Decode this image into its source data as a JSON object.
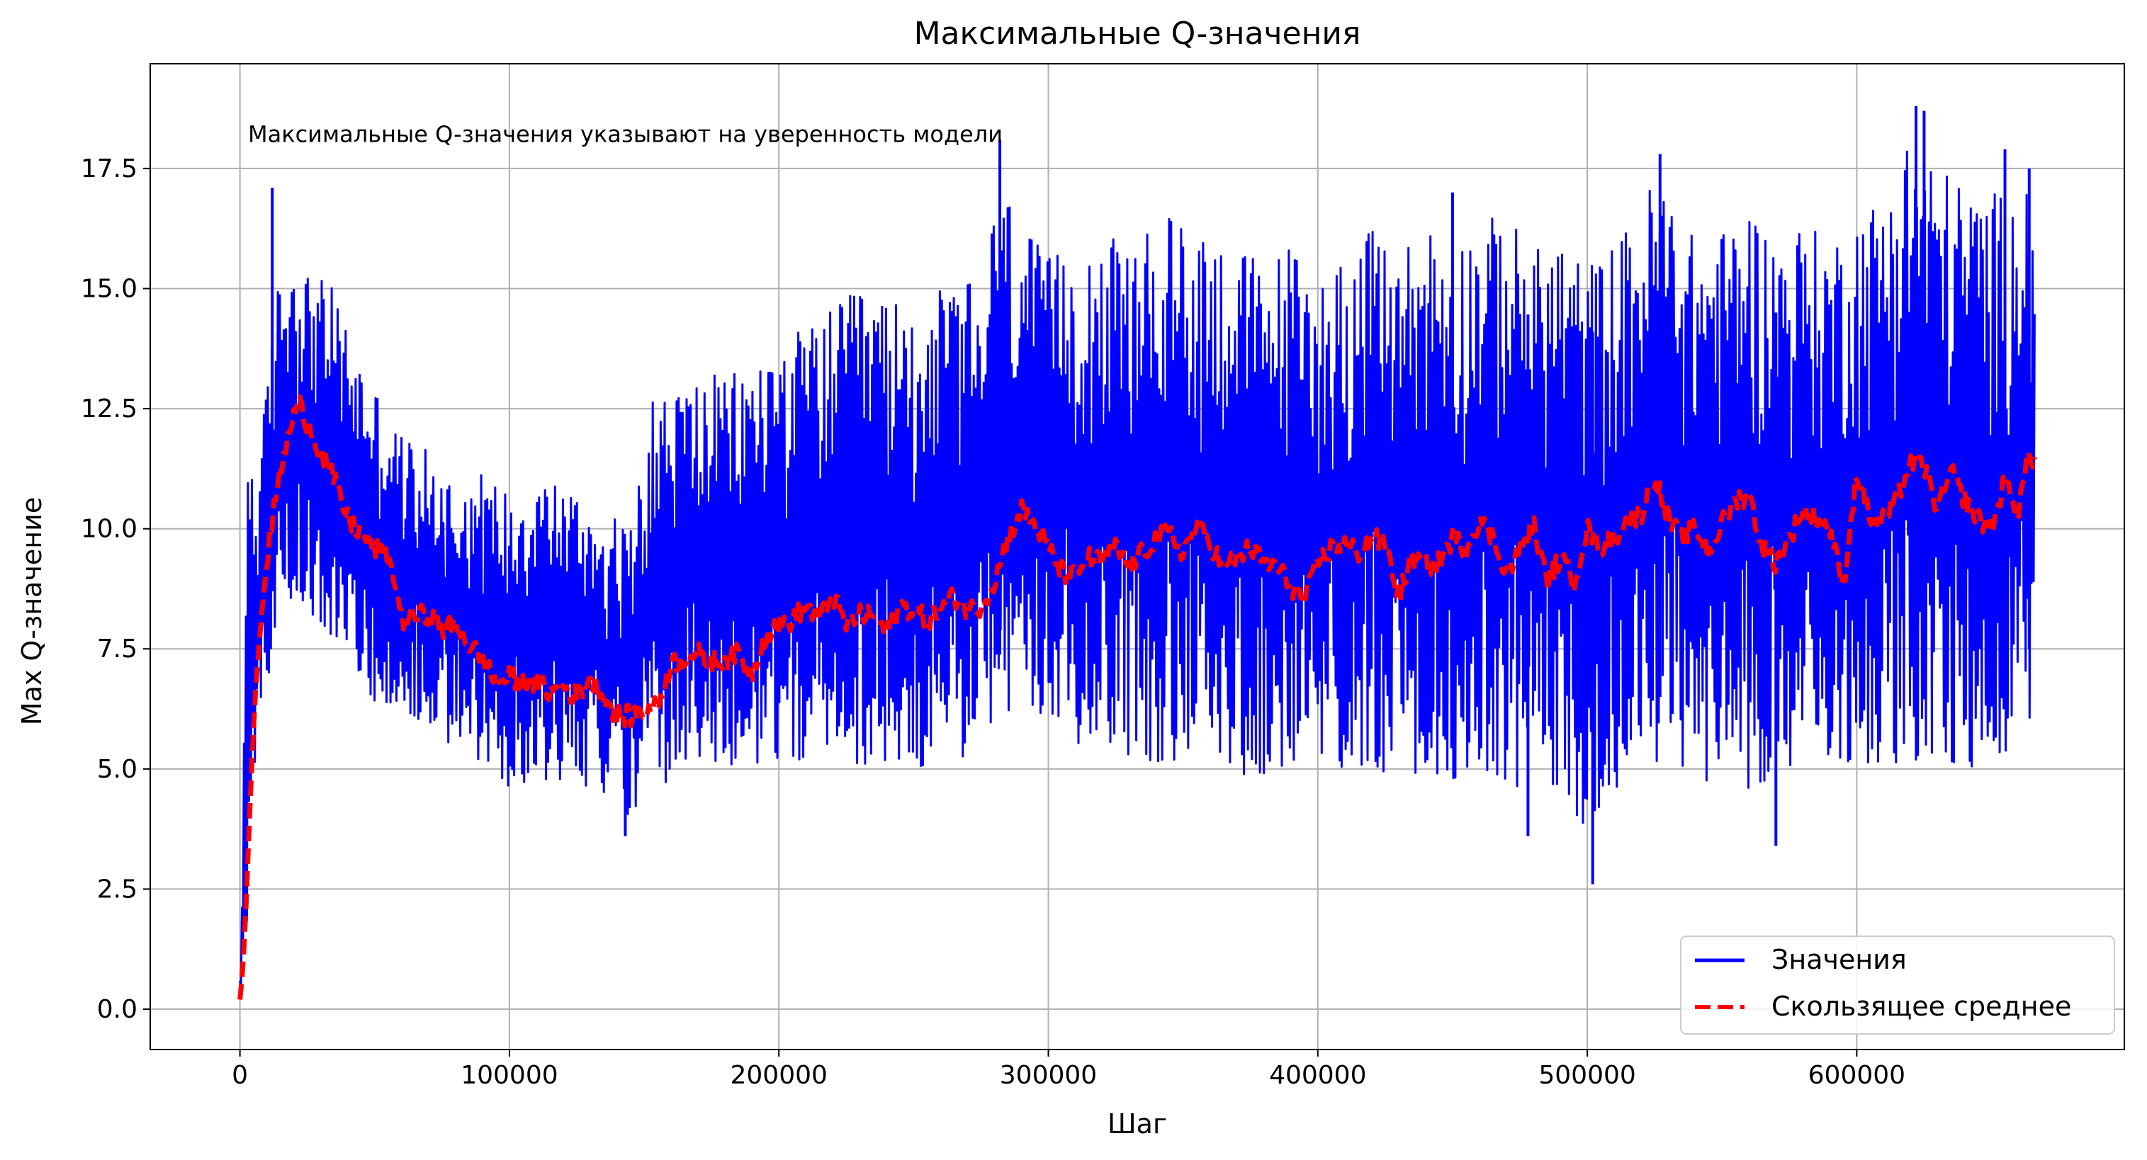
{
  "chart_data": {
    "type": "line",
    "title": "Максимальные Q-значения",
    "annotation": "Максимальные Q-значения указывают на уверенность модели",
    "xlabel": "Шаг",
    "ylabel": "Max Q-значение",
    "xlim": [
      -33300,
      699300
    ],
    "ylim": [
      -0.84,
      19.68
    ],
    "xticks": [
      0,
      100000,
      200000,
      300000,
      400000,
      500000,
      600000
    ],
    "xtick_labels": [
      "0",
      "100000",
      "200000",
      "300000",
      "400000",
      "500000",
      "600000"
    ],
    "yticks": [
      0.0,
      2.5,
      5.0,
      7.5,
      10.0,
      12.5,
      15.0,
      17.5
    ],
    "ytick_labels": [
      "0.0",
      "2.5",
      "5.0",
      "7.5",
      "10.0",
      "12.5",
      "15.0",
      "17.5"
    ],
    "grid": true,
    "legend_position": "bottom-right",
    "series": [
      {
        "name": "Значения",
        "color": "#0000ff",
        "style": "solid",
        "x": [
          0,
          1000,
          2000,
          3000,
          4000,
          5000,
          6000,
          7000,
          8000,
          10000,
          12000,
          15000,
          20000,
          25000,
          30000,
          35000,
          40000,
          45000,
          50000,
          55000,
          60000,
          70000,
          80000,
          90000,
          100000,
          110000,
          120000,
          130000,
          140000,
          145000,
          150000,
          160000,
          170000,
          180000,
          190000,
          200000,
          210000,
          220000,
          230000,
          240000,
          250000,
          260000,
          270000,
          275000,
          280000,
          285000,
          290000,
          300000,
          310000,
          320000,
          330000,
          340000,
          350000,
          360000,
          370000,
          380000,
          390000,
          400000,
          410000,
          420000,
          430000,
          440000,
          450000,
          460000,
          470000,
          480000,
          490000,
          500000,
          510000,
          520000,
          525000,
          530000,
          540000,
          550000,
          560000,
          570000,
          580000,
          590000,
          600000,
          610000,
          620000,
          630000,
          640000,
          650000,
          660000,
          666000
        ],
        "min": [
          0.1,
          0.5,
          1.2,
          2.2,
          3.2,
          4.0,
          4.8,
          5.4,
          6.0,
          6.8,
          7.2,
          8.0,
          8.5,
          8.3,
          8.0,
          7.6,
          7.2,
          6.8,
          6.4,
          6.2,
          6.0,
          5.8,
          5.4,
          4.9,
          4.6,
          4.8,
          4.7,
          4.6,
          4.2,
          4.0,
          4.3,
          4.6,
          4.9,
          5.0,
          5.0,
          5.1,
          5.1,
          5.2,
          5.1,
          5.0,
          5.0,
          5.1,
          5.2,
          5.4,
          5.8,
          6.0,
          6.1,
          5.7,
          5.5,
          5.4,
          5.3,
          5.0,
          5.2,
          5.1,
          4.9,
          4.8,
          4.9,
          5.0,
          4.8,
          5.0,
          4.8,
          4.6,
          4.8,
          4.9,
          4.7,
          4.2,
          4.6,
          3.5,
          4.6,
          4.9,
          5.0,
          5.0,
          4.8,
          4.7,
          4.6,
          4.8,
          4.9,
          4.8,
          5.2,
          5.0,
          4.9,
          5.0,
          4.8,
          5.0,
          5.2,
          6.4
        ],
        "max": [
          0.6,
          3.0,
          9.6,
          13.2,
          12.0,
          10.8,
          11.0,
          11.5,
          12.0,
          13.0,
          14.2,
          15.5,
          15.8,
          15.4,
          15.2,
          15.0,
          14.2,
          13.5,
          13.0,
          12.4,
          12.0,
          11.6,
          11.0,
          11.2,
          10.8,
          11.2,
          11.0,
          10.5,
          10.2,
          10.0,
          12.6,
          13.0,
          13.2,
          13.2,
          13.4,
          14.0,
          14.2,
          14.6,
          15.0,
          14.8,
          14.6,
          15.0,
          15.2,
          14.6,
          16.8,
          17.0,
          16.4,
          15.6,
          16.0,
          16.2,
          15.8,
          16.4,
          16.6,
          16.2,
          16.0,
          15.5,
          16.0,
          15.2,
          15.8,
          16.2,
          15.8,
          16.5,
          16.0,
          16.4,
          16.6,
          15.8,
          16.2,
          15.5,
          16.0,
          16.6,
          17.5,
          17.2,
          16.0,
          16.2,
          16.8,
          16.0,
          16.4,
          16.0,
          16.6,
          17.0,
          18.4,
          17.6,
          17.2,
          17.0,
          17.2,
          17.2
        ],
        "spikes": [
          [
            12000,
            17.1
          ],
          [
            282000,
            18.1
          ],
          [
            450000,
            17.0
          ],
          [
            527000,
            17.8
          ],
          [
            622000,
            18.8
          ],
          [
            625000,
            18.7
          ],
          [
            655000,
            17.9
          ],
          [
            664000,
            17.5
          ],
          [
            502000,
            2.6
          ],
          [
            143000,
            3.6
          ],
          [
            478000,
            3.6
          ],
          [
            570000,
            3.4
          ]
        ]
      },
      {
        "name": "Скользящее среднее",
        "color": "#ff0000",
        "style": "dashed",
        "x": [
          0,
          1000,
          2000,
          3000,
          4000,
          5000,
          6000,
          8000,
          10000,
          12000,
          15000,
          18000,
          20000,
          22000,
          25000,
          30000,
          35000,
          40000,
          45000,
          50000,
          55000,
          58000,
          60000,
          65000,
          70000,
          75000,
          80000,
          85000,
          90000,
          95000,
          100000,
          105000,
          110000,
          115000,
          120000,
          125000,
          130000,
          135000,
          140000,
          145000,
          150000,
          155000,
          160000,
          165000,
          170000,
          175000,
          180000,
          185000,
          190000,
          195000,
          200000,
          205000,
          210000,
          215000,
          220000,
          225000,
          230000,
          235000,
          240000,
          245000,
          250000,
          255000,
          260000,
          265000,
          270000,
          275000,
          280000,
          285000,
          290000,
          295000,
          300000,
          305000,
          310000,
          315000,
          320000,
          325000,
          330000,
          335000,
          340000,
          345000,
          350000,
          355000,
          360000,
          365000,
          370000,
          375000,
          380000,
          385000,
          390000,
          395000,
          400000,
          405000,
          410000,
          415000,
          420000,
          425000,
          430000,
          435000,
          440000,
          445000,
          450000,
          455000,
          460000,
          465000,
          470000,
          475000,
          480000,
          485000,
          490000,
          495000,
          500000,
          505000,
          510000,
          515000,
          520000,
          525000,
          530000,
          535000,
          540000,
          545000,
          550000,
          555000,
          560000,
          565000,
          570000,
          575000,
          580000,
          585000,
          590000,
          595000,
          600000,
          605000,
          610000,
          615000,
          620000,
          625000,
          630000,
          635000,
          640000,
          645000,
          650000,
          655000,
          660000,
          664000,
          666000
        ],
        "y": [
          0.2,
          0.8,
          1.8,
          3.2,
          4.6,
          5.8,
          6.8,
          8.2,
          9.3,
          10.2,
          11.2,
          11.9,
          12.4,
          12.6,
          12.2,
          11.6,
          11.0,
          10.2,
          9.9,
          9.6,
          9.4,
          8.8,
          8.1,
          8.2,
          8.2,
          7.9,
          8.0,
          7.6,
          7.3,
          6.8,
          6.9,
          6.8,
          6.8,
          6.6,
          6.7,
          6.5,
          6.9,
          6.5,
          6.1,
          6.1,
          6.2,
          6.3,
          7.2,
          7.3,
          7.4,
          7.2,
          7.3,
          7.4,
          7.0,
          7.8,
          8.0,
          8.1,
          8.4,
          8.1,
          8.6,
          8.0,
          8.2,
          8.2,
          7.8,
          8.4,
          8.3,
          8.1,
          8.3,
          8.6,
          8.3,
          8.4,
          8.9,
          9.8,
          10.4,
          10.1,
          9.6,
          9.1,
          9.0,
          9.4,
          9.3,
          9.6,
          9.2,
          9.5,
          9.8,
          9.9,
          9.5,
          10.1,
          9.7,
          9.2,
          9.4,
          9.6,
          9.3,
          9.2,
          8.8,
          8.5,
          9.3,
          9.6,
          9.7,
          9.5,
          9.8,
          9.7,
          8.6,
          9.4,
          9.2,
          9.3,
          9.8,
          9.6,
          10.2,
          9.8,
          9.1,
          9.5,
          10.1,
          8.9,
          9.4,
          8.9,
          10.0,
          9.6,
          9.8,
          10.2,
          10.3,
          11.1,
          10.2,
          9.8,
          10.0,
          9.5,
          10.1,
          10.6,
          10.7,
          9.6,
          9.3,
          9.8,
          10.4,
          10.2,
          10.0,
          8.8,
          11.2,
          10.2,
          10.2,
          10.6,
          11.4,
          11.3,
          10.4,
          11.2,
          10.6,
          10.2,
          10.0,
          11.0,
          10.4,
          11.6,
          11.4
        ]
      }
    ]
  }
}
